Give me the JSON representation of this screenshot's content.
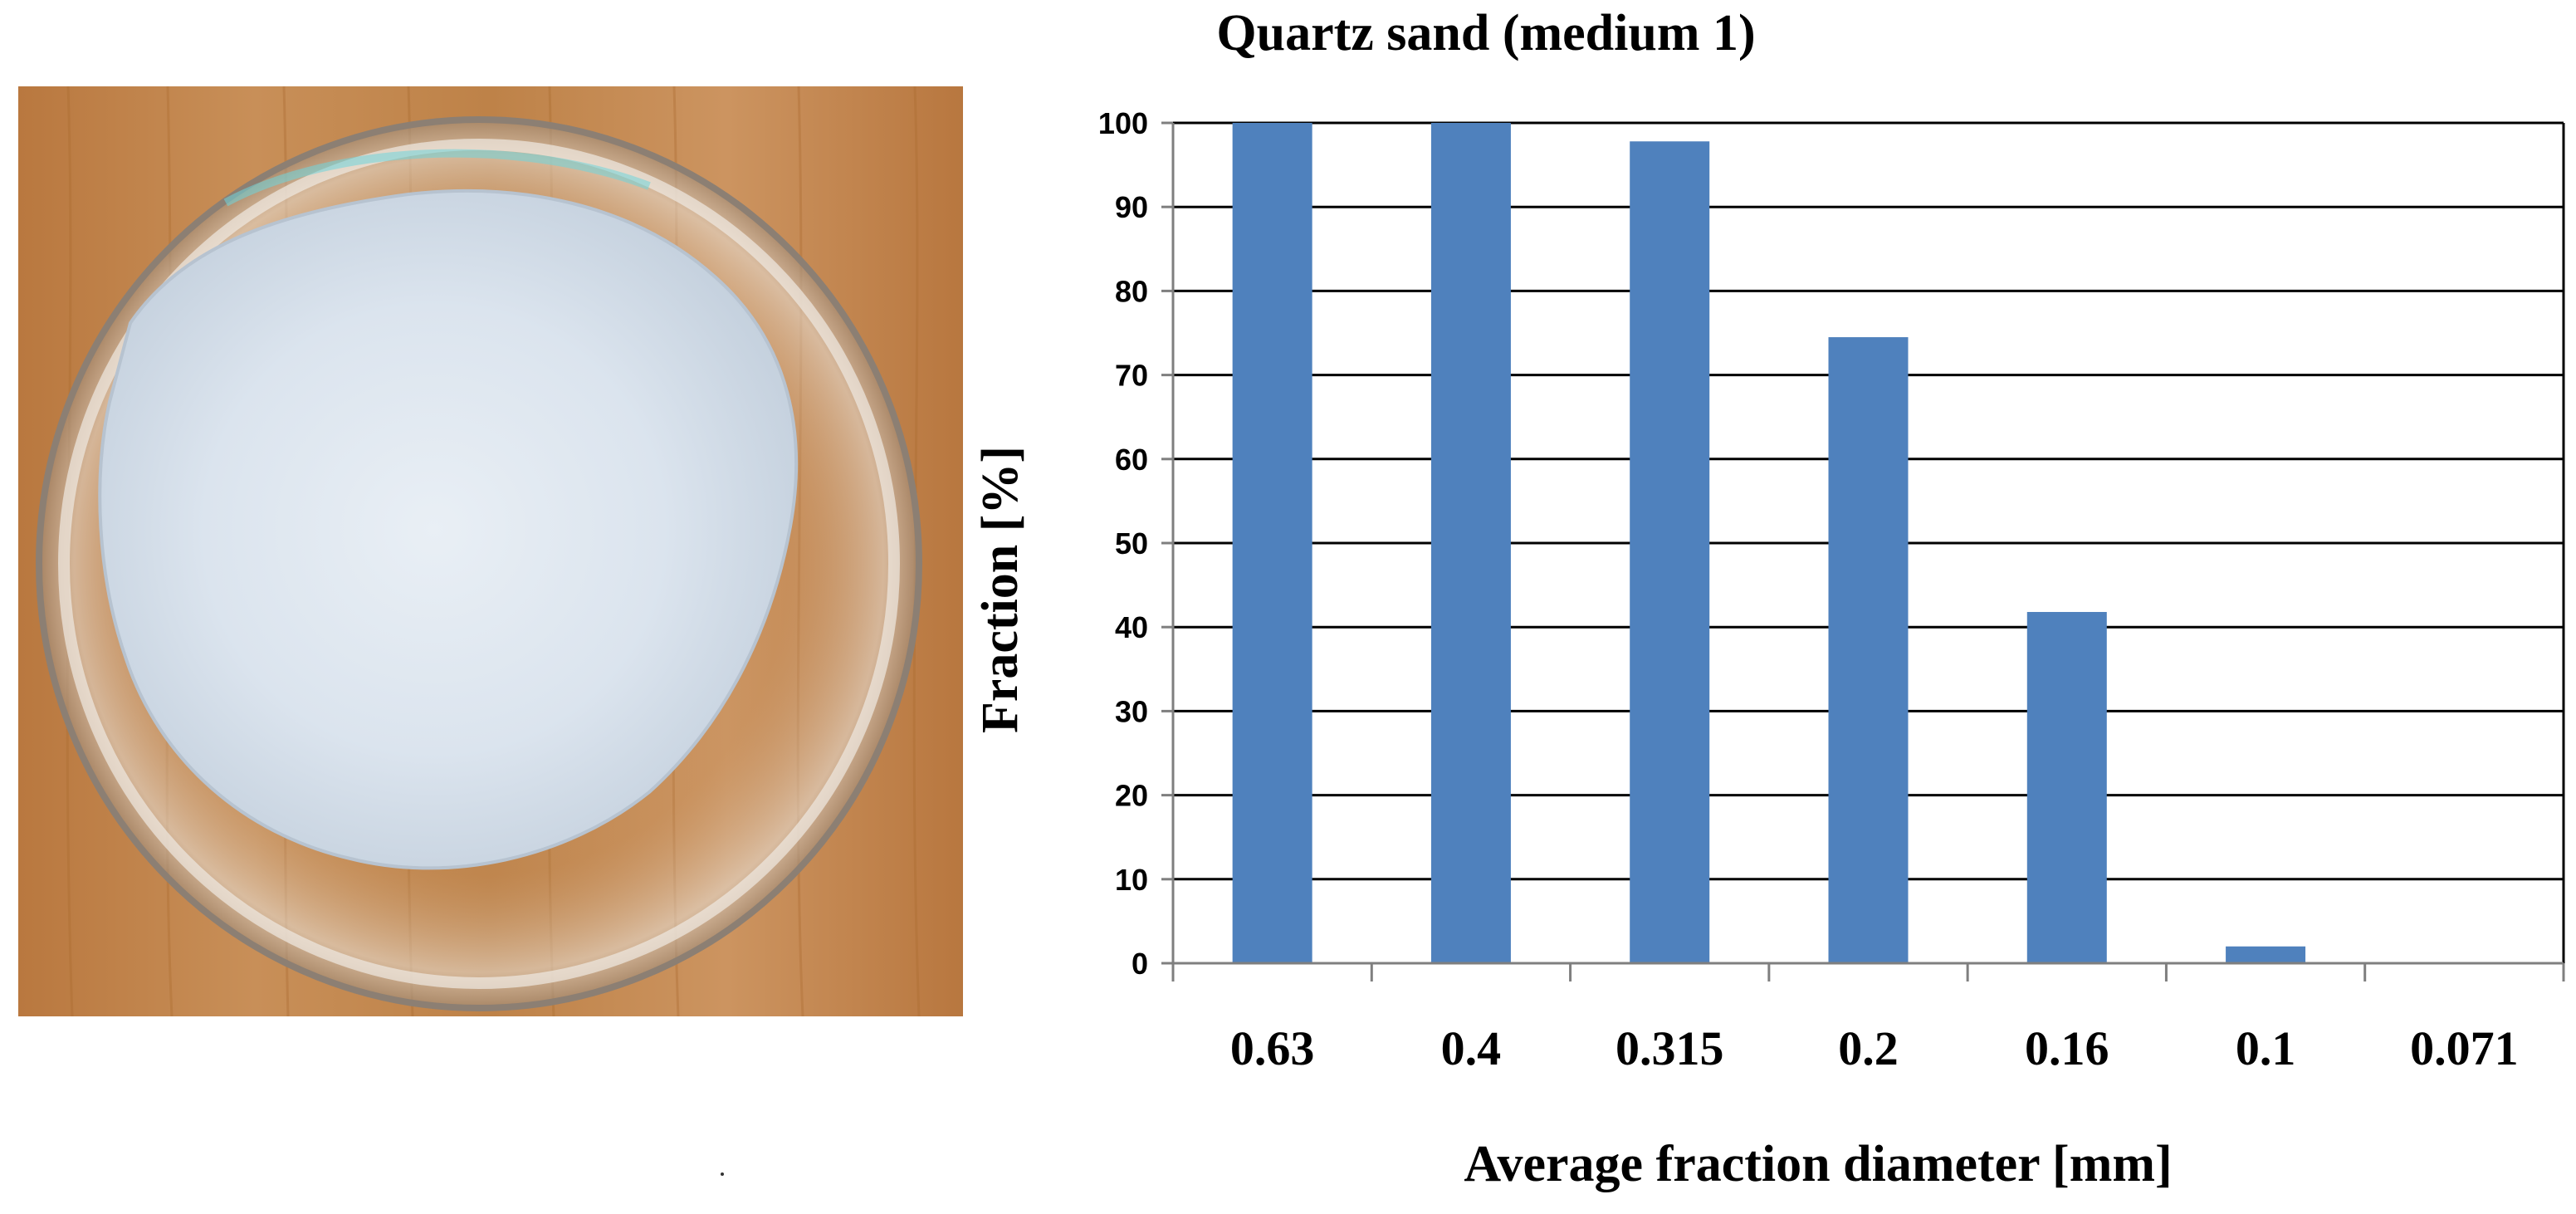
{
  "colors": {
    "bar": "#4f81bd",
    "grid": "#000000",
    "axis": "#7f7f7f",
    "tabletop": "#c4894f",
    "sand": "#dde6ef"
  },
  "photo": {
    "icon": "petri-dish-with-quartz-sand-photo"
  },
  "chart_data": {
    "type": "bar",
    "title": "Quartz sand (medium 1)",
    "xlabel": "Average fraction diameter [mm]",
    "ylabel": "Fraction [%]",
    "categories": [
      "0.63",
      "0.4",
      "0.315",
      "0.2",
      "0.16",
      "0.1",
      "0.071"
    ],
    "values": [
      100,
      100,
      97.8,
      74.5,
      41.8,
      2.0,
      0
    ],
    "ylim": [
      0,
      100
    ],
    "yticks": [
      0,
      10,
      20,
      30,
      40,
      50,
      60,
      70,
      80,
      90,
      100
    ],
    "grid": true,
    "legend": "none"
  }
}
